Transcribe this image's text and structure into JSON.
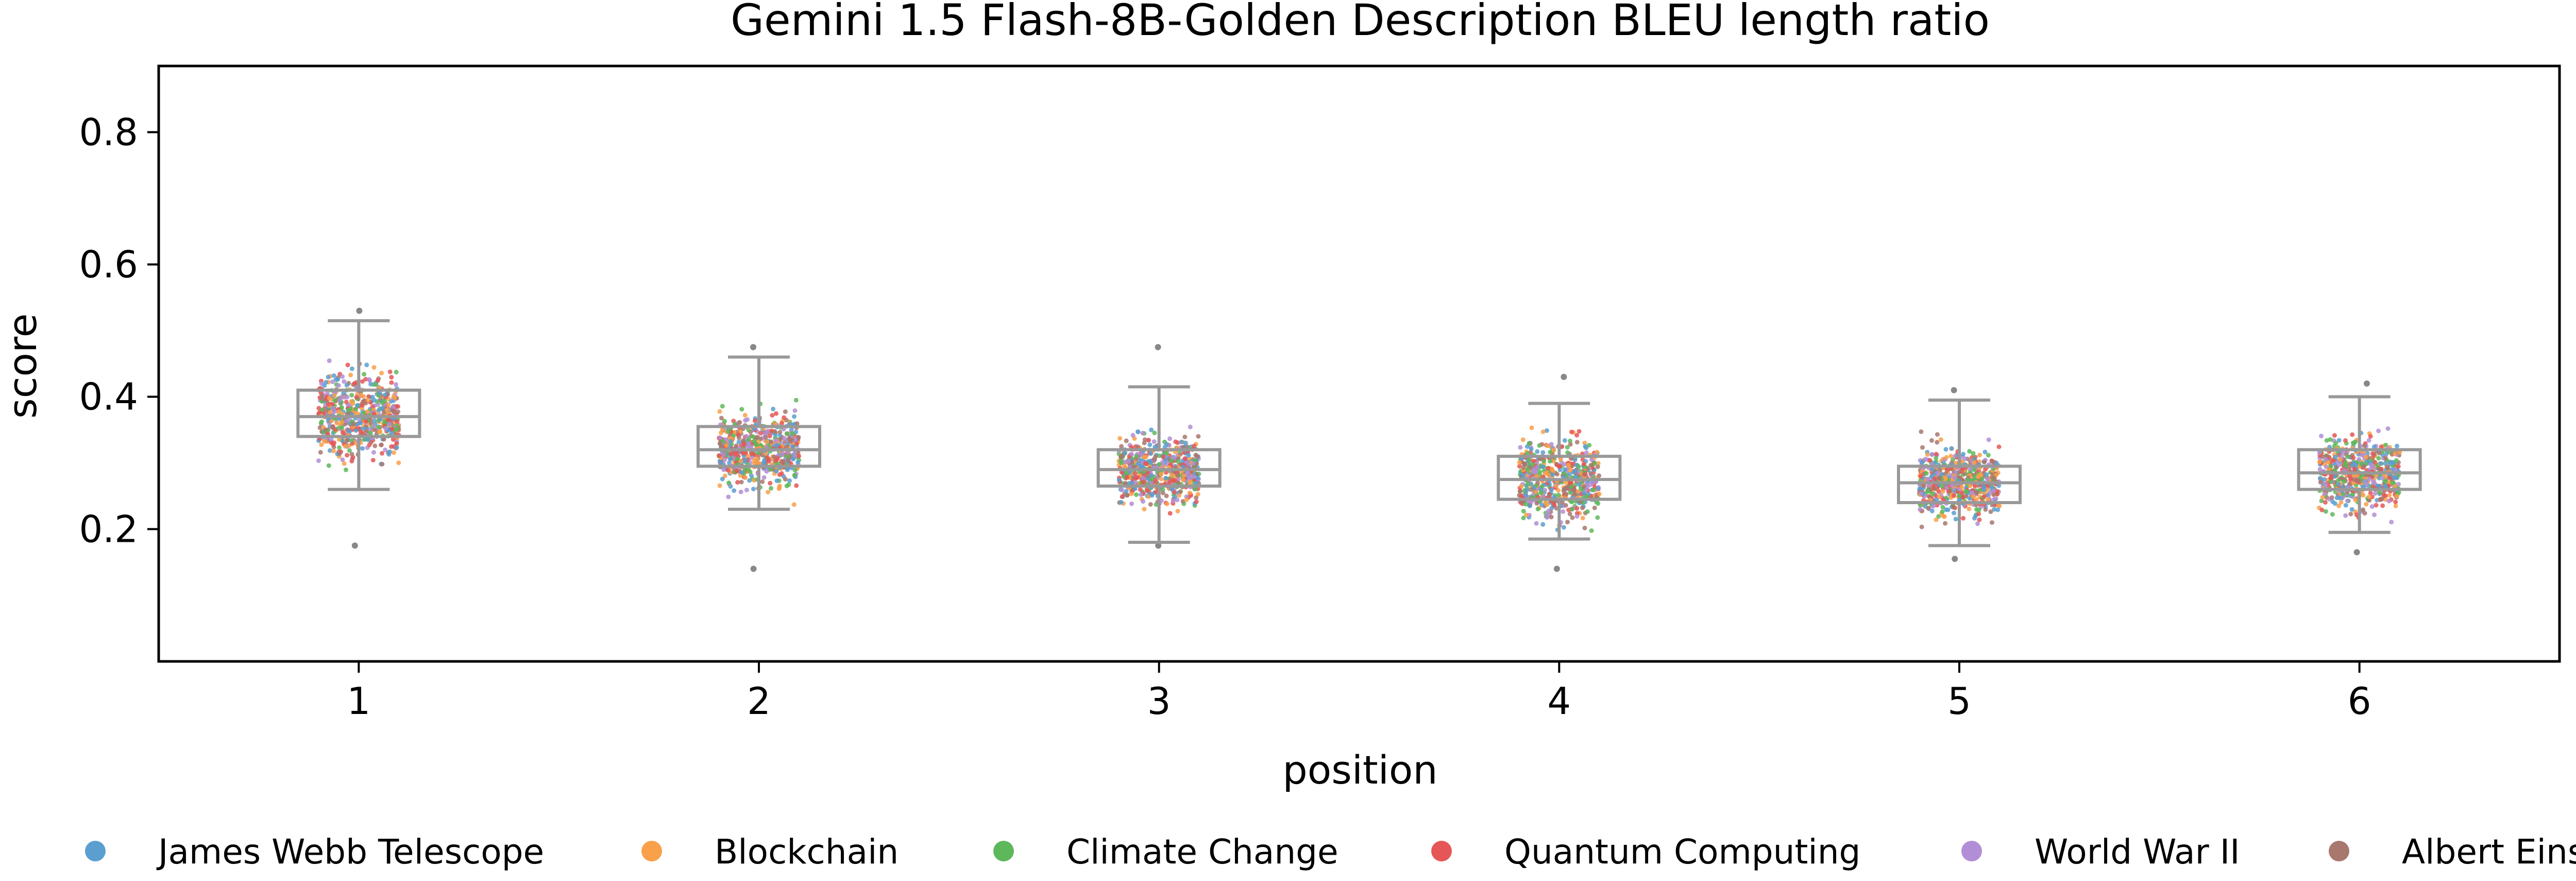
{
  "chart_data": {
    "type": "scatter",
    "title": "Gemini 1.5 Flash-8B-Golden Description BLEU length ratio",
    "xlabel": "position",
    "ylabel": "score",
    "categories": [
      "1",
      "2",
      "3",
      "4",
      "5",
      "6"
    ],
    "yticks": [
      "0.2",
      "0.4",
      "0.6",
      "0.8"
    ],
    "ylim": [
      0.0,
      0.9
    ],
    "xlim": [
      0.5,
      6.5
    ],
    "grid": false,
    "legend_position": "bottom",
    "series": [
      {
        "name": "James Webb Telescope",
        "color": "#5b9fd0"
      },
      {
        "name": "Blockchain",
        "color": "#f9a04a"
      },
      {
        "name": "Climate Change",
        "color": "#5db85b"
      },
      {
        "name": "Quantum Computing",
        "color": "#e45756"
      },
      {
        "name": "World War II",
        "color": "#b28ed6"
      },
      {
        "name": "Albert Einstein",
        "color": "#a8786f"
      }
    ],
    "boxes": [
      {
        "x": 1,
        "whisker_low": 0.26,
        "q1": 0.34,
        "median": 0.37,
        "q3": 0.41,
        "whisker_high": 0.515,
        "min": 0.175,
        "max": 0.53
      },
      {
        "x": 2,
        "whisker_low": 0.23,
        "q1": 0.295,
        "median": 0.32,
        "q3": 0.355,
        "whisker_high": 0.46,
        "min": 0.14,
        "max": 0.475
      },
      {
        "x": 3,
        "whisker_low": 0.18,
        "q1": 0.265,
        "median": 0.29,
        "q3": 0.32,
        "whisker_high": 0.415,
        "min": 0.175,
        "max": 0.475
      },
      {
        "x": 4,
        "whisker_low": 0.185,
        "q1": 0.245,
        "median": 0.275,
        "q3": 0.31,
        "whisker_high": 0.39,
        "min": 0.14,
        "max": 0.43
      },
      {
        "x": 5,
        "whisker_low": 0.175,
        "q1": 0.24,
        "median": 0.27,
        "q3": 0.295,
        "whisker_high": 0.395,
        "min": 0.155,
        "max": 0.41
      },
      {
        "x": 6,
        "whisker_low": 0.195,
        "q1": 0.26,
        "median": 0.285,
        "q3": 0.32,
        "whisker_high": 0.4,
        "min": 0.165,
        "max": 0.42
      }
    ],
    "box_color": "#999999"
  }
}
